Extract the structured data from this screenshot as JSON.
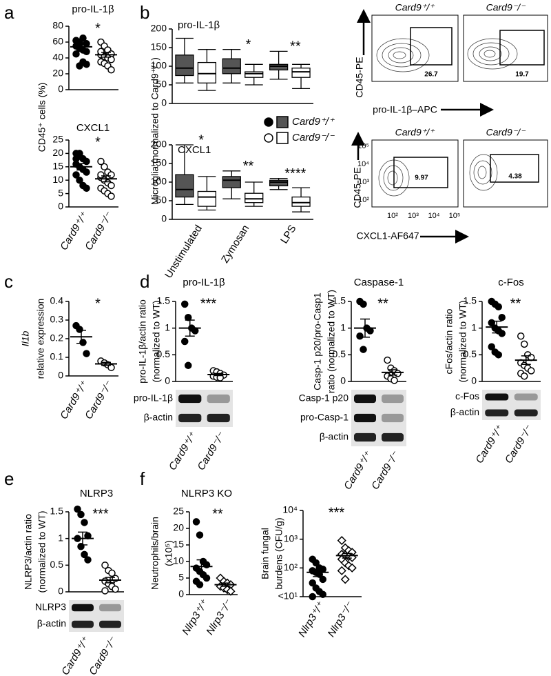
{
  "panel_labels": [
    "a",
    "b",
    "c",
    "d",
    "e",
    "f"
  ],
  "shared_ylabels": {
    "a": "CD45⁺ cells (%)",
    "b": "Microglia (normalized to Card9⁺/⁺)"
  },
  "flow": {
    "rows": [
      {
        "y_axis_label": "CD45-PE",
        "x_axis_label": "pro-IL-1β–APC",
        "plots": [
          {
            "title": "Card9⁺/⁺",
            "gate": "26.7"
          },
          {
            "title": "Card9⁻/⁻",
            "gate": "19.7"
          }
        ]
      },
      {
        "y_axis_label": "CD45-PE",
        "x_axis_label": "CXCL1-AF647",
        "plots": [
          {
            "title": "Card9⁺/⁺",
            "gate": "9.97"
          },
          {
            "title": "Card9⁻/⁻",
            "gate": "4.38"
          }
        ],
        "y_ticks": [
          "10⁵",
          "10⁴",
          "10³",
          "10²"
        ],
        "x_ticks": [
          "10²",
          "10³",
          "10⁴",
          "10⁵"
        ]
      }
    ]
  },
  "chart_data": [
    {
      "type": "dot",
      "title": "pro-IL-1β",
      "ylim": [
        0,
        80
      ],
      "yticks": [
        0,
        20,
        40,
        60,
        80
      ],
      "points": [
        [
          62,
          60,
          65,
          58,
          55,
          52,
          50,
          48,
          45,
          30,
          35,
          32,
          62,
          57
        ],
        [
          60,
          55,
          50,
          45,
          44,
          42,
          40,
          38,
          35,
          33,
          30,
          25,
          48
        ]
      ],
      "means": [
        54,
        44
      ],
      "sems": [
        3.5,
        3
      ],
      "markers": [
        "filled-circle",
        "open-circle"
      ],
      "significance": "*"
    },
    {
      "type": "dot",
      "title": "CXCL1",
      "ylim": [
        0,
        25
      ],
      "yticks": [
        0,
        5,
        10,
        15,
        20,
        25
      ],
      "categories": [
        "Card9⁺/⁺",
        "Card9⁻/⁻"
      ],
      "points": [
        [
          20,
          19,
          18,
          17,
          16,
          15,
          14,
          13,
          12,
          10,
          8,
          7,
          18,
          20
        ],
        [
          17,
          15,
          13,
          12,
          11,
          10,
          9,
          8,
          7,
          6,
          5,
          4,
          12
        ]
      ],
      "means": [
        15,
        10.5
      ],
      "sems": [
        1.2,
        1.1
      ],
      "markers": [
        "filled-circle",
        "open-circle"
      ],
      "significance": "*"
    },
    {
      "type": "box",
      "title": "pro-IL-1β",
      "ylim": [
        0,
        200
      ],
      "yticks": [
        0,
        50,
        100,
        150,
        200
      ],
      "series": [
        {
          "color": "#555555",
          "boxes": [
            [
              55,
              75,
              95,
              130,
              175
            ],
            [
              55,
              80,
              95,
              120,
              145
            ],
            [
              65,
              90,
              100,
              105,
              140
            ]
          ]
        },
        {
          "color": "#ffffff",
          "boxes": [
            [
              35,
              55,
              80,
              110,
              145
            ],
            [
              50,
              70,
              80,
              85,
              105
            ],
            [
              40,
              70,
              85,
              95,
              105
            ]
          ]
        }
      ],
      "significance": [
        null,
        "*",
        "**"
      ]
    },
    {
      "type": "box",
      "title": "CXCL1",
      "ylim": [
        0,
        200
      ],
      "yticks": [
        0,
        50,
        100,
        150,
        200
      ],
      "categories": [
        "Unstimulated",
        "Zymosan",
        "LPS"
      ],
      "legend": "top-right",
      "series": [
        {
          "name": "Card9⁺/⁺",
          "color": "#555555",
          "boxes": [
            [
              40,
              60,
              80,
              120,
              200
            ],
            [
              55,
              85,
              105,
              115,
              130
            ],
            [
              80,
              90,
              100,
              105,
              110
            ]
          ]
        },
        {
          "name": "Card9⁻/⁻",
          "color": "#ffffff",
          "boxes": [
            [
              25,
              35,
              60,
              75,
              115
            ],
            [
              35,
              45,
              55,
              70,
              100
            ],
            [
              20,
              35,
              45,
              60,
              85
            ]
          ]
        }
      ],
      "significance": [
        "*",
        "**",
        "****"
      ]
    },
    {
      "type": "dot",
      "ylabel": [
        "Il1b",
        "relative expression"
      ],
      "ylim": [
        0,
        0.4
      ],
      "yticks": [
        0,
        0.1,
        0.2,
        0.3,
        0.4
      ],
      "categories": [
        "Card9⁺/⁺",
        "Card9⁻/⁻"
      ],
      "points": [
        [
          0.27,
          0.25,
          0.18,
          0.12
        ],
        [
          0.08,
          0.07,
          0.06,
          0.045
        ]
      ],
      "means": [
        0.21,
        0.065
      ],
      "sems": [
        0.035,
        0.008
      ],
      "markers": [
        "filled-circle",
        "open-circle"
      ],
      "significance": "*"
    },
    {
      "type": "dot",
      "title": "pro-IL-1β",
      "ylabel": [
        "pro-IL-1β/actin ratio",
        "(normalized to WT)"
      ],
      "ylim": [
        0,
        1.5
      ],
      "yticks": [
        0,
        0.5,
        1,
        1.5
      ],
      "categories": [
        "Card9⁺/⁺",
        "Card9⁻/⁻"
      ],
      "points": [
        [
          1.45,
          1.2,
          1.0,
          0.95,
          0.75,
          0.3
        ],
        [
          0.2,
          0.18,
          0.15,
          0.12,
          0.1,
          0.08,
          0.07
        ]
      ],
      "means": [
        1.0,
        0.13
      ],
      "sems": [
        0.15,
        0.02
      ],
      "markers": [
        "filled-circle",
        "open-circle"
      ],
      "significance": "***",
      "blot_labels": [
        "pro-IL-1β",
        "β-actin"
      ]
    },
    {
      "type": "dot",
      "title": "Caspase-1",
      "ylabel": [
        "Casp-1 p20/pro-Casp1",
        "ratio (normalized to WT)"
      ],
      "ylim": [
        0,
        1.5
      ],
      "yticks": [
        0,
        0.5,
        1,
        1.5
      ],
      "categories": [
        "Card9⁺/⁺",
        "Card9⁻/⁻"
      ],
      "points": [
        [
          1.5,
          1.45,
          1.0,
          0.95,
          0.85,
          0.6
        ],
        [
          0.4,
          0.25,
          0.2,
          0.15,
          0.1,
          0.05,
          0.02
        ]
      ],
      "means": [
        1.0,
        0.17
      ],
      "sems": [
        0.17,
        0.05
      ],
      "markers": [
        "filled-circle",
        "open-circle"
      ],
      "significance": "**",
      "blot_labels": [
        "Casp-1 p20",
        "pro-Casp-1",
        "β-actin"
      ]
    },
    {
      "type": "dot",
      "title": "c-Fos",
      "ylabel": [
        "cFos/actin ratio",
        "(normalized to WT)"
      ],
      "ylim": [
        0,
        1.5
      ],
      "yticks": [
        0,
        0.5,
        1,
        1.5
      ],
      "categories": [
        "Card9⁺/⁺",
        "Card9⁻/⁻"
      ],
      "points": [
        [
          1.5,
          1.45,
          1.4,
          1.2,
          1.1,
          1.0,
          0.95,
          0.9,
          0.65,
          0.55,
          0.5
        ],
        [
          0.85,
          0.7,
          0.5,
          0.45,
          0.35,
          0.3,
          0.25,
          0.2,
          0.15,
          0.1
        ]
      ],
      "means": [
        1.02,
        0.4
      ],
      "sems": [
        0.11,
        0.08
      ],
      "markers": [
        "filled-circle",
        "open-circle"
      ],
      "significance": "**",
      "blot_labels": [
        "c-Fos",
        "β-actin"
      ]
    },
    {
      "type": "dot",
      "title": "NLRP3",
      "ylabel": [
        "NLRP3/actin ratio",
        "(normalized to WT)"
      ],
      "ylim": [
        0,
        1.5
      ],
      "yticks": [
        0,
        0.5,
        1,
        1.5
      ],
      "categories": [
        "Card9⁺/⁺",
        "Card9⁻/⁻"
      ],
      "points": [
        [
          1.55,
          1.45,
          1.3,
          1.05,
          1.0,
          0.85,
          0.7,
          0.6
        ],
        [
          0.5,
          0.4,
          0.35,
          0.25,
          0.2,
          0.15,
          0.1,
          0.05,
          0.02
        ]
      ],
      "means": [
        1.0,
        0.22
      ],
      "sems": [
        0.12,
        0.05
      ],
      "markers": [
        "filled-circle",
        "open-circle"
      ],
      "significance": "***",
      "blot_labels": [
        "NLRP3",
        "β-actin"
      ]
    },
    {
      "type": "dot",
      "title": "NLRP3 KO",
      "ylabel": [
        "Neutrophils/brain",
        "(x10⁵)"
      ],
      "ylim": [
        0,
        25
      ],
      "yticks": [
        0,
        5,
        10,
        15,
        20,
        25
      ],
      "categories": [
        "Nlrp3⁺/⁺",
        "Nlrp3⁻/⁻"
      ],
      "points": [
        [
          22,
          18,
          10,
          9,
          8,
          7,
          6,
          5,
          4,
          3
        ],
        [
          5,
          4,
          3.5,
          3,
          2.5,
          2,
          1.5,
          1
        ]
      ],
      "means": [
        8.5,
        3
      ],
      "sems": [
        2,
        0.5
      ],
      "markers": [
        "filled-circle",
        "open-diamond"
      ],
      "significance": "**"
    },
    {
      "type": "dot",
      "ylabel": [
        "Brain fungal",
        "burdens (CFU/g)"
      ],
      "log_scale": true,
      "ylim": [
        10,
        10000
      ],
      "yticks": [
        {
          "value": 10,
          "label": "<10¹"
        },
        {
          "value": 100,
          "label": "10²"
        },
        {
          "value": 1000,
          "label": "10³"
        },
        {
          "value": 10000,
          "label": "10⁴"
        }
      ],
      "categories": [
        "Nlrp3⁺/⁺",
        "Nlrp3⁻/⁻"
      ],
      "points": [
        [
          200,
          150,
          100,
          90,
          80,
          70,
          60,
          40,
          30,
          20,
          15,
          12,
          10
        ],
        [
          900,
          500,
          400,
          350,
          300,
          280,
          250,
          230,
          200,
          150,
          120,
          100,
          80,
          40
        ]
      ],
      "means": [
        70,
        270
      ],
      "sems": [
        20,
        50
      ],
      "markers": [
        "filled-circle",
        "open-diamond"
      ],
      "significance": "***"
    }
  ]
}
